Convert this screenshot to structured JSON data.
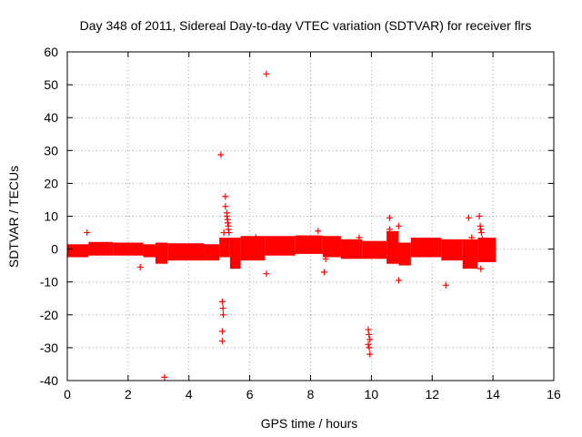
{
  "chart_data": {
    "type": "scatter",
    "title": "Day 348 of 2011, Sidereal Day-to-day VTEC variation (SDTVAR) for receiver flrs",
    "xlabel": "GPS time / hours",
    "ylabel": "SDTVAR / TECUs",
    "xlim": [
      0,
      16
    ],
    "ylim": [
      -40,
      60
    ],
    "xticks": [
      0,
      2,
      4,
      6,
      8,
      10,
      12,
      14,
      16
    ],
    "yticks": [
      -40,
      -30,
      -20,
      -10,
      0,
      10,
      20,
      30,
      40,
      50,
      60
    ],
    "grid": true,
    "marker": "+",
    "marker_color": "#ff0000",
    "bands": [
      {
        "x0": 0.0,
        "x1": 0.7,
        "lo": -1.5,
        "hi": 0.5
      },
      {
        "x0": 0.7,
        "x1": 1.5,
        "lo": -1.0,
        "hi": 1.2
      },
      {
        "x0": 1.5,
        "x1": 2.5,
        "lo": -1.0,
        "hi": 1.0
      },
      {
        "x0": 2.5,
        "x1": 2.9,
        "lo": -1.5,
        "hi": 0.5
      },
      {
        "x0": 2.9,
        "x1": 3.3,
        "lo": -3.5,
        "hi": 1.0
      },
      {
        "x0": 3.3,
        "x1": 4.5,
        "lo": -2.5,
        "hi": 0.8
      },
      {
        "x0": 4.5,
        "x1": 5.0,
        "lo": -2.5,
        "hi": 0.5
      },
      {
        "x0": 5.0,
        "x1": 5.35,
        "lo": -1.5,
        "hi": 2.5
      },
      {
        "x0": 5.35,
        "x1": 5.7,
        "lo": -5.0,
        "hi": 2.5
      },
      {
        "x0": 5.7,
        "x1": 6.5,
        "lo": -2.5,
        "hi": 3.0
      },
      {
        "x0": 6.5,
        "x1": 7.5,
        "lo": -1.0,
        "hi": 3.0
      },
      {
        "x0": 7.5,
        "x1": 8.4,
        "lo": -0.5,
        "hi": 3.2
      },
      {
        "x0": 8.4,
        "x1": 9.0,
        "lo": -1.5,
        "hi": 3.0
      },
      {
        "x0": 9.0,
        "x1": 9.7,
        "lo": -2.0,
        "hi": 2.0
      },
      {
        "x0": 9.7,
        "x1": 10.5,
        "lo": -2.0,
        "hi": 1.5
      },
      {
        "x0": 10.5,
        "x1": 10.9,
        "lo": -3.5,
        "hi": 4.5
      },
      {
        "x0": 10.9,
        "x1": 11.3,
        "lo": -4.0,
        "hi": 1.0
      },
      {
        "x0": 11.3,
        "x1": 12.3,
        "lo": -1.5,
        "hi": 2.5
      },
      {
        "x0": 12.3,
        "x1": 13.0,
        "lo": -2.5,
        "hi": 2.0
      },
      {
        "x0": 13.0,
        "x1": 13.5,
        "lo": -5.0,
        "hi": 2.0
      },
      {
        "x0": 13.5,
        "x1": 14.1,
        "lo": -3.0,
        "hi": 2.5
      }
    ],
    "outliers": [
      {
        "x": 0.65,
        "y": 5
      },
      {
        "x": 2.4,
        "y": -5.5
      },
      {
        "x": 3.2,
        "y": -39
      },
      {
        "x": 5.05,
        "y": 28.7
      },
      {
        "x": 5.1,
        "y": -16
      },
      {
        "x": 5.12,
        "y": -18
      },
      {
        "x": 5.13,
        "y": -20
      },
      {
        "x": 5.1,
        "y": -25
      },
      {
        "x": 5.1,
        "y": -28
      },
      {
        "x": 5.15,
        "y": 5
      },
      {
        "x": 5.2,
        "y": 13
      },
      {
        "x": 5.2,
        "y": 16
      },
      {
        "x": 5.25,
        "y": 11
      },
      {
        "x": 5.25,
        "y": 10
      },
      {
        "x": 5.27,
        "y": 9
      },
      {
        "x": 5.28,
        "y": 8
      },
      {
        "x": 5.3,
        "y": 7
      },
      {
        "x": 5.3,
        "y": 6
      },
      {
        "x": 5.32,
        "y": 5
      },
      {
        "x": 6.2,
        "y": 3.5
      },
      {
        "x": 6.55,
        "y": 53.3
      },
      {
        "x": 6.55,
        "y": -7.5
      },
      {
        "x": 8.25,
        "y": 5.5
      },
      {
        "x": 8.45,
        "y": -7
      },
      {
        "x": 8.5,
        "y": -3
      },
      {
        "x": 9.6,
        "y": 3.5
      },
      {
        "x": 9.9,
        "y": -24.5
      },
      {
        "x": 9.92,
        "y": -26
      },
      {
        "x": 9.95,
        "y": -27.5
      },
      {
        "x": 9.9,
        "y": -29
      },
      {
        "x": 9.93,
        "y": -30
      },
      {
        "x": 9.95,
        "y": -32
      },
      {
        "x": 10.6,
        "y": 9.5
      },
      {
        "x": 10.6,
        "y": 6
      },
      {
        "x": 10.9,
        "y": 7
      },
      {
        "x": 10.9,
        "y": -9.5
      },
      {
        "x": 12.45,
        "y": -11
      },
      {
        "x": 13.2,
        "y": 9.5
      },
      {
        "x": 13.3,
        "y": 3.5
      },
      {
        "x": 13.55,
        "y": 10
      },
      {
        "x": 13.58,
        "y": 7
      },
      {
        "x": 13.6,
        "y": 6
      },
      {
        "x": 13.62,
        "y": 5
      },
      {
        "x": 13.65,
        "y": 3
      },
      {
        "x": 13.6,
        "y": -6
      }
    ]
  }
}
